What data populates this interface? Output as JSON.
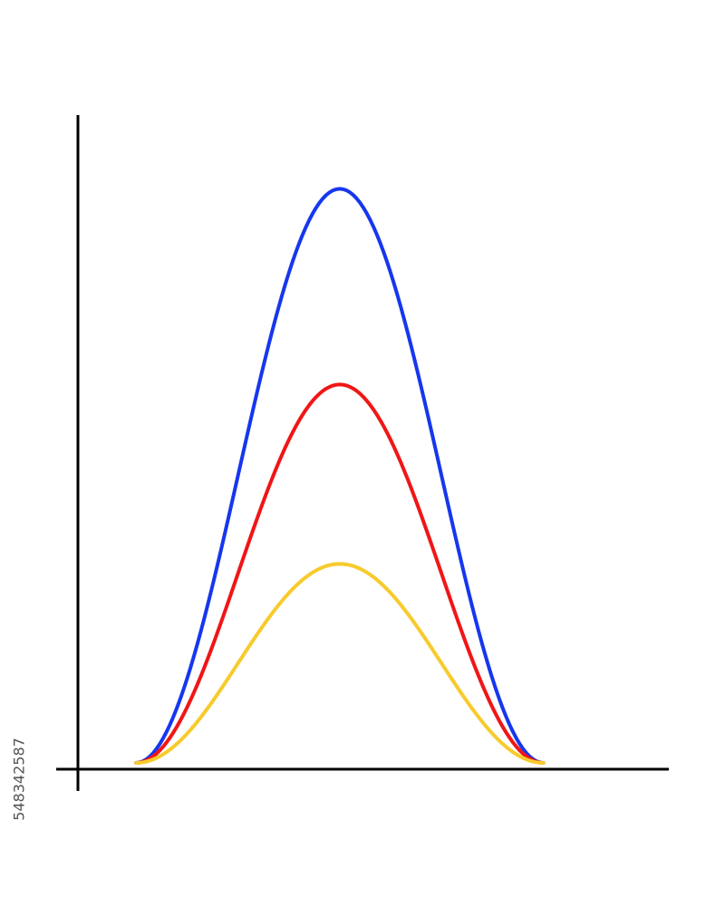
{
  "watermark": {
    "stock_id": "548342587"
  },
  "chart_data": {
    "type": "line",
    "title": "",
    "xlabel": "",
    "ylabel": "",
    "grid": false,
    "legend": "none",
    "xlim": [
      0,
      10
    ],
    "ylim": [
      0,
      10
    ],
    "x": [
      0,
      0.25,
      0.5,
      0.75,
      1,
      1.25,
      1.5,
      1.75,
      2,
      2.25,
      2.5,
      2.75,
      3,
      3.25,
      3.5,
      3.75,
      4,
      4.25,
      4.5,
      4.75,
      5,
      5.25,
      5.5,
      5.75,
      6,
      6.25,
      6.5,
      6.75,
      7,
      7.25,
      7.5,
      7.75,
      8,
      8.25,
      8.5,
      8.75,
      9,
      9.25,
      9.5,
      9.75,
      10
    ],
    "series": [
      {
        "color": "#1637ee",
        "shape": "cosine_bump",
        "x_start": 1,
        "x_end": 8,
        "peak": 8.8
      },
      {
        "color": "#f01616",
        "shape": "cosine_bump",
        "x_start": 1,
        "x_end": 8,
        "peak": 5.8
      },
      {
        "color": "#f7cb2c",
        "shape": "cosine_bump",
        "x_start": 1,
        "x_end": 8,
        "peak": 3.05
      }
    ]
  }
}
